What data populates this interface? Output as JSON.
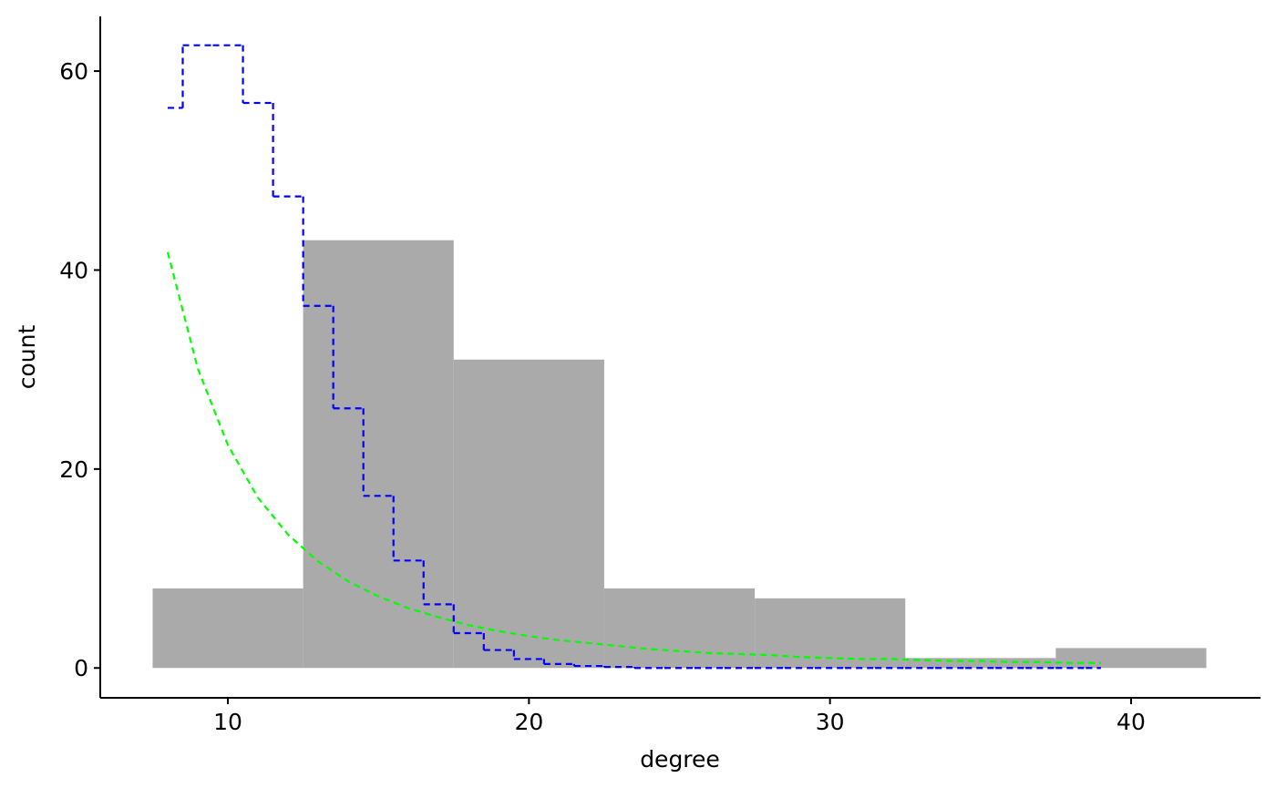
{
  "chart_data": {
    "type": "histogram",
    "x_label": "degree",
    "y_label": "count",
    "bins": [
      7.5,
      12.5,
      17.5,
      22.5,
      27.5,
      32.5,
      37.5,
      42.5
    ],
    "values": [
      8,
      43,
      31,
      8,
      7,
      1,
      2
    ],
    "color": "#aaaaaa",
    "series": [
      {
        "color": "#0000ff",
        "step": "mid",
        "x": [
          8,
          9,
          10,
          11,
          12,
          13,
          14,
          15,
          16,
          17,
          18,
          19,
          20,
          21,
          22,
          23,
          24,
          25,
          26,
          27,
          28,
          29,
          30,
          31,
          32,
          33,
          34,
          35,
          36,
          37,
          38,
          39
        ],
        "values": [
          56.3,
          62.6,
          62.6,
          56.8,
          47.4,
          36.4,
          26.1,
          17.3,
          10.8,
          6.4,
          3.5,
          1.8,
          0.9,
          0.4,
          0.2,
          0.1,
          0,
          0,
          0,
          0,
          0,
          0,
          0,
          0,
          0,
          0,
          0,
          0,
          0,
          0,
          0,
          0
        ]
      },
      {
        "color": "#00ff00",
        "x": [
          8,
          9,
          10,
          11,
          12,
          13,
          14,
          15,
          16,
          17,
          18,
          19,
          20,
          21,
          22,
          23,
          24,
          25,
          26,
          27,
          28,
          29,
          30,
          31,
          32,
          33,
          34,
          35,
          36,
          37,
          38,
          39
        ],
        "values": [
          41.8,
          30.1,
          22.4,
          17.1,
          13.4,
          10.7,
          8.7,
          7.2,
          6.0,
          5.1,
          4.3,
          3.7,
          3.2,
          2.8,
          2.5,
          2.2,
          1.9,
          1.7,
          1.5,
          1.4,
          1.3,
          1.1,
          1.0,
          0.9,
          0.9,
          0.8,
          0.7,
          0.7,
          0.6,
          0.6,
          0.5,
          0.5
        ]
      }
    ],
    "xlim": [
      5.76,
      44.3
    ],
    "ylim": [
      -3.0,
      65.5
    ],
    "xticks": [
      10,
      20,
      30,
      40
    ],
    "yticks": [
      0,
      20,
      40,
      60
    ]
  }
}
